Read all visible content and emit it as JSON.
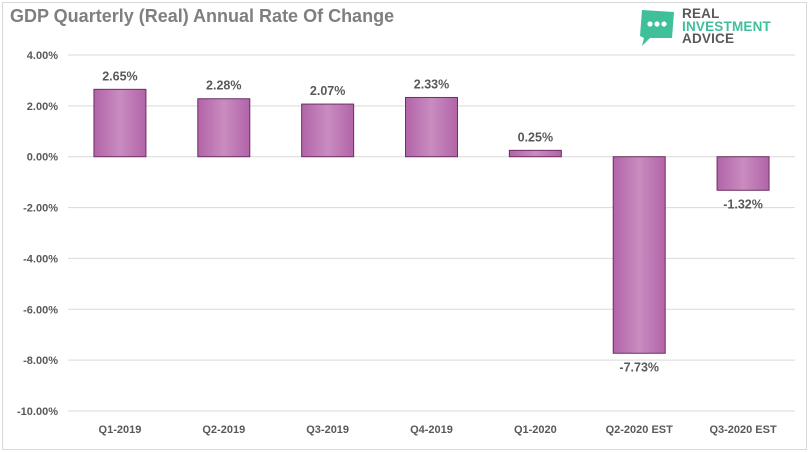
{
  "chart_data": {
    "type": "bar",
    "title": "GDP Quarterly (Real) Annual Rate Of Change",
    "categories": [
      "Q1-2019",
      "Q2-2019",
      "Q3-2019",
      "Q4-2019",
      "Q1-2020",
      "Q2-2020 EST",
      "Q3-2020 EST"
    ],
    "values": [
      2.65,
      2.28,
      2.07,
      2.33,
      0.25,
      -7.73,
      -1.32
    ],
    "data_labels": [
      "2.65%",
      "2.28%",
      "2.07%",
      "2.33%",
      "0.25%",
      "-7.73%",
      "-1.32%"
    ],
    "ylim": [
      -10,
      4
    ],
    "yticks": [
      4,
      2,
      0,
      -2,
      -4,
      -6,
      -8,
      -10
    ],
    "ytick_labels": [
      "4.00%",
      "2.00%",
      "0.00%",
      "-2.00%",
      "-4.00%",
      "-6.00%",
      "-8.00%",
      "-10.00%"
    ],
    "xlabel": "",
    "ylabel": "",
    "grid": true,
    "legend": "none",
    "colors": {
      "bar_fill": "#b264a8",
      "bar_highlight": "#c98cc0",
      "bar_edge": "#6d2f63",
      "grid": "#d9d9d9",
      "text": "#595959",
      "title": "#7f7f7f",
      "logo_green": "#3fbf9a"
    }
  },
  "logo": {
    "line1": "REAL",
    "line2": "INVESTMENT",
    "line3": "ADVICE",
    "icon": "chat-bubble-icon"
  }
}
